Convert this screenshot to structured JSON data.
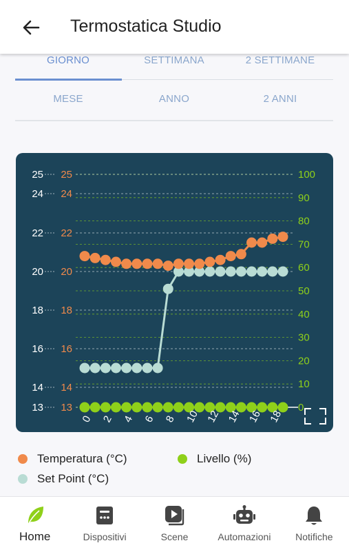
{
  "header": {
    "title": "Termostatica Studio",
    "back_icon": "arrow-back-icon"
  },
  "period_tabs": [
    {
      "label": "GIORNO",
      "active": true
    },
    {
      "label": "SETTIMANA",
      "active": false
    },
    {
      "label": "2 SETTIMANE",
      "active": false
    },
    {
      "label": "MESE",
      "active": false
    },
    {
      "label": "ANNO",
      "active": false
    },
    {
      "label": "2 ANNI",
      "active": false
    }
  ],
  "colors": {
    "temperature": "#f08a4b",
    "setpoint": "#b9dcd4",
    "level": "#8fd01a",
    "chart_bg": "#1c4459"
  },
  "chart_data": {
    "type": "line",
    "x": [
      0,
      1,
      2,
      3,
      4,
      5,
      6,
      7,
      8,
      9,
      10,
      11,
      12,
      13,
      14,
      15,
      16,
      17,
      18,
      19
    ],
    "x_tick_labels": [
      "0",
      "2",
      "4",
      "6",
      "8",
      "10",
      "12",
      "14",
      "16",
      "18"
    ],
    "left_axis_ticks": [
      "25",
      "24",
      "22",
      "20",
      "18",
      "16",
      "14",
      "13"
    ],
    "left_axis_values": [
      25,
      24,
      22,
      20,
      18,
      16,
      14,
      13
    ],
    "right_axis_ticks": [
      "100",
      "90",
      "80",
      "70",
      "60",
      "50",
      "40",
      "30",
      "20",
      "10",
      "0"
    ],
    "ylim_left": [
      13,
      25
    ],
    "ylim_right": [
      0,
      100
    ],
    "grid": true,
    "series": [
      {
        "name": "Temperatura (°C)",
        "axis": "left",
        "values": [
          20.8,
          20.7,
          20.6,
          20.5,
          20.4,
          20.4,
          20.4,
          20.4,
          20.3,
          20.4,
          20.4,
          20.4,
          20.5,
          20.6,
          20.8,
          20.9,
          21.5,
          21.5,
          21.7,
          21.8
        ]
      },
      {
        "name": "Set Point (°C)",
        "axis": "left",
        "values": [
          15,
          15,
          15,
          15,
          15,
          15,
          15,
          15,
          19.1,
          20,
          20,
          20,
          20,
          20,
          20,
          20,
          20,
          20,
          20,
          20
        ]
      },
      {
        "name": "Livello (%)",
        "axis": "right",
        "values": [
          0,
          0,
          0,
          0,
          0,
          0,
          0,
          0,
          0,
          0,
          0,
          0,
          0,
          0,
          0,
          0,
          0,
          0,
          0,
          0
        ]
      }
    ]
  },
  "legend": [
    {
      "label": "Temperatura (°C)"
    },
    {
      "label": "Livello (%)"
    },
    {
      "label": "Set Point (°C)"
    }
  ],
  "bottom_nav": [
    {
      "label": "Home",
      "icon": "leaf-icon",
      "active": true
    },
    {
      "label": "Dispositivi",
      "icon": "device-icon",
      "active": false
    },
    {
      "label": "Scene",
      "icon": "scene-play-icon",
      "active": false
    },
    {
      "label": "Automazioni",
      "icon": "robot-icon",
      "active": false
    },
    {
      "label": "Notifiche",
      "icon": "bell-icon",
      "active": false
    }
  ]
}
